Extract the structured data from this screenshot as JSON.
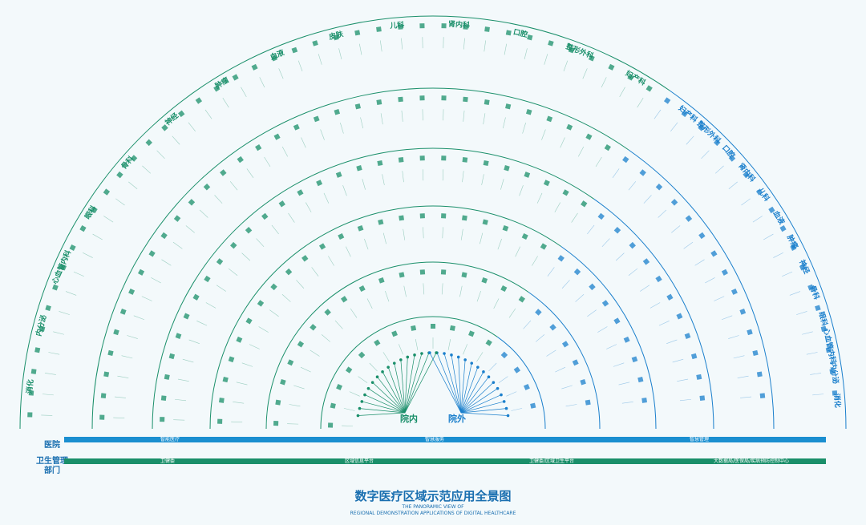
{
  "title": "数字医疗区域示范应用全景图",
  "subtitle_lines": [
    "THE PANORAMIC VIEW OF",
    "REGIONAL DEMONSTRATION APPLICATIONS OF DIGITAL HEALTHCARE"
  ],
  "hub": {
    "inside": "院内",
    "outside": "院外"
  },
  "departments_inside": [
    "消化",
    "内分泌",
    "心血管内科",
    "眼科",
    "骨科",
    "神经",
    "肿瘤",
    "血液",
    "皮肤",
    "儿科",
    "肾内科",
    "口腔",
    "整形外科",
    "妇产科"
  ],
  "departments_outside": [
    "妇产科",
    "整形外科",
    "口腔",
    "肾内科",
    "儿科",
    "血液",
    "肿瘤",
    "神经",
    "骨科",
    "眼科",
    "心血管内科",
    "内分泌",
    "消化"
  ],
  "rows": [
    {
      "label": "医院",
      "sections": [
        "智能医疗",
        "智慧服务",
        "智慧管理"
      ]
    },
    {
      "label": "卫生管理部门",
      "sections": [
        "卫健委",
        "区域信息平台",
        "卫健委/区域卫生平台",
        "大数据局/医保局/疾病预防控制中心"
      ]
    }
  ]
}
